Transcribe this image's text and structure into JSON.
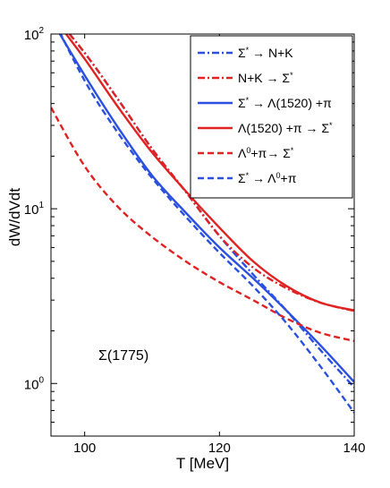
{
  "chart_data": {
    "type": "line",
    "title": "",
    "xlabel": "T [MeV]",
    "ylabel": "dW/dVdt",
    "xlim": [
      95,
      140
    ],
    "ylim": [
      0.5,
      100
    ],
    "yscale": "log",
    "grid": false,
    "legend_position": "top-right",
    "x_ticks": [
      100,
      120,
      140
    ],
    "x_tick_labels": [
      "100",
      "120",
      "140"
    ],
    "y_ticks": [
      1,
      10,
      100
    ],
    "y_tick_labels": [
      {
        "base": "10",
        "exp": "0"
      },
      {
        "base": "10",
        "exp": "1"
      },
      {
        "base": "10",
        "exp": "2"
      }
    ],
    "annotation": "Σ(1775)",
    "legend": [
      {
        "parts": [
          {
            "t": "Σ"
          },
          {
            "t": "*",
            "sup": true
          },
          {
            "t": " → N+K"
          }
        ]
      },
      {
        "parts": [
          {
            "t": "N+K → Σ"
          },
          {
            "t": "*",
            "sup": true
          }
        ]
      },
      {
        "parts": [
          {
            "t": "Σ"
          },
          {
            "t": "*",
            "sup": true
          },
          {
            "t": " → Λ(1520) +π"
          }
        ]
      },
      {
        "parts": [
          {
            "t": "Λ(1520) +π → Σ"
          },
          {
            "t": "*",
            "sup": true
          }
        ]
      },
      {
        "parts": [
          {
            "t": "Λ"
          },
          {
            "t": "0",
            "sup": true
          },
          {
            "t": "+π→ Σ"
          },
          {
            "t": "*",
            "sup": true
          }
        ]
      },
      {
        "parts": [
          {
            "t": "Σ"
          },
          {
            "t": "*",
            "sup": true
          },
          {
            "t": " → Λ"
          },
          {
            "t": "0",
            "sup": true
          },
          {
            "t": "+π"
          }
        ]
      }
    ],
    "series": [
      {
        "color": "#2b50e0",
        "dash": "dashdot",
        "x": [
          95,
          100,
          105,
          110,
          115,
          120,
          125,
          130,
          135,
          140
        ],
        "y": [
          134,
          78,
          42,
          22,
          12.5,
          7.0,
          4.2,
          2.6,
          1.55,
          0.95
        ]
      },
      {
        "color": "#e02222",
        "dash": "dashdot",
        "x": [
          95,
          100,
          105,
          110,
          115,
          120,
          125,
          130,
          135,
          140
        ],
        "y": [
          134,
          78,
          42,
          22,
          12.5,
          7.0,
          4.6,
          3.5,
          2.9,
          2.6
        ]
      },
      {
        "color": "#2b50e0",
        "dash": "solid",
        "x": [
          95,
          100,
          105,
          110,
          115,
          120,
          125,
          130,
          135,
          140
        ],
        "y": [
          122,
          58,
          29,
          15.5,
          9.5,
          6.0,
          4.0,
          2.6,
          1.65,
          1.02
        ]
      },
      {
        "color": "#e02222",
        "dash": "solid",
        "x": [
          95,
          100,
          105,
          110,
          115,
          120,
          125,
          130,
          135,
          140
        ],
        "y": [
          130,
          72,
          38,
          21,
          12.6,
          7.8,
          5.0,
          3.6,
          2.9,
          2.62
        ]
      },
      {
        "color": "#e02222",
        "dash": "dashed",
        "x": [
          95,
          100,
          105,
          110,
          115,
          120,
          125,
          130,
          135,
          140
        ],
        "y": [
          38,
          17.5,
          10.2,
          6.9,
          5.0,
          3.8,
          3.0,
          2.35,
          1.95,
          1.75
        ]
      },
      {
        "color": "#2b50e0",
        "dash": "dashed",
        "x": [
          95,
          100,
          105,
          110,
          115,
          120,
          125,
          130,
          135,
          140
        ],
        "y": [
          130,
          54,
          27,
          15,
          9.0,
          5.6,
          3.6,
          2.2,
          1.25,
          0.68
        ]
      }
    ]
  }
}
